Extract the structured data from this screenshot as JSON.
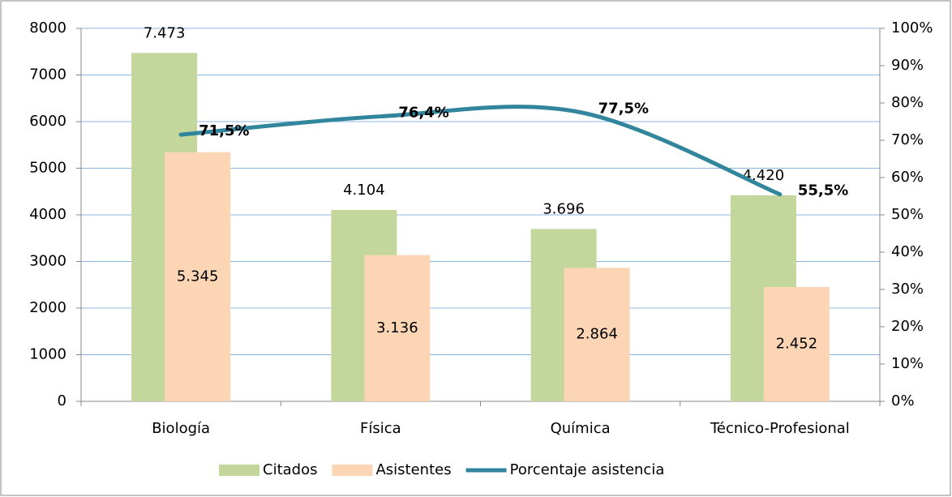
{
  "chart_data": {
    "type": "bar",
    "categories": [
      "Biología",
      "Física",
      "Química",
      "Técnico-Profesional"
    ],
    "series": [
      {
        "name": "Citados",
        "color": "#c3d69b",
        "values": [
          7473,
          4104,
          3696,
          4420
        ],
        "value_labels": [
          "7.473",
          "4.104",
          "3.696",
          "4.420"
        ]
      },
      {
        "name": "Asistentes",
        "color": "#fcd5b5",
        "values": [
          5345,
          3136,
          2864,
          2452
        ],
        "value_labels": [
          "5.345",
          "3.136",
          "2.864",
          "2.452"
        ]
      },
      {
        "name": "Porcentaje asistencia",
        "type": "line",
        "axis": "y2",
        "color": "#31859c",
        "values": [
          71.5,
          76.4,
          77.5,
          55.5
        ],
        "value_labels": [
          "71,5%",
          "76,4%",
          "77,5%",
          "55,5%"
        ]
      }
    ],
    "ylim": [
      0,
      8000
    ],
    "yticks": [
      0,
      1000,
      2000,
      3000,
      4000,
      5000,
      6000,
      7000,
      8000
    ],
    "y2lim": [
      0,
      100
    ],
    "y2ticks": [
      {
        "value": 0,
        "label": "0%"
      },
      {
        "value": 10,
        "label": "10%"
      },
      {
        "value": 20,
        "label": "20%"
      },
      {
        "value": 30,
        "label": "30%"
      },
      {
        "value": 40,
        "label": "40%"
      },
      {
        "value": 50,
        "label": "50%"
      },
      {
        "value": 60,
        "label": "60%"
      },
      {
        "value": 70,
        "label": "70%"
      },
      {
        "value": 80,
        "label": "80%"
      },
      {
        "value": 90,
        "label": "90%"
      },
      {
        "value": 100,
        "label": "100%"
      }
    ],
    "grid": true,
    "legend": "bottom"
  }
}
